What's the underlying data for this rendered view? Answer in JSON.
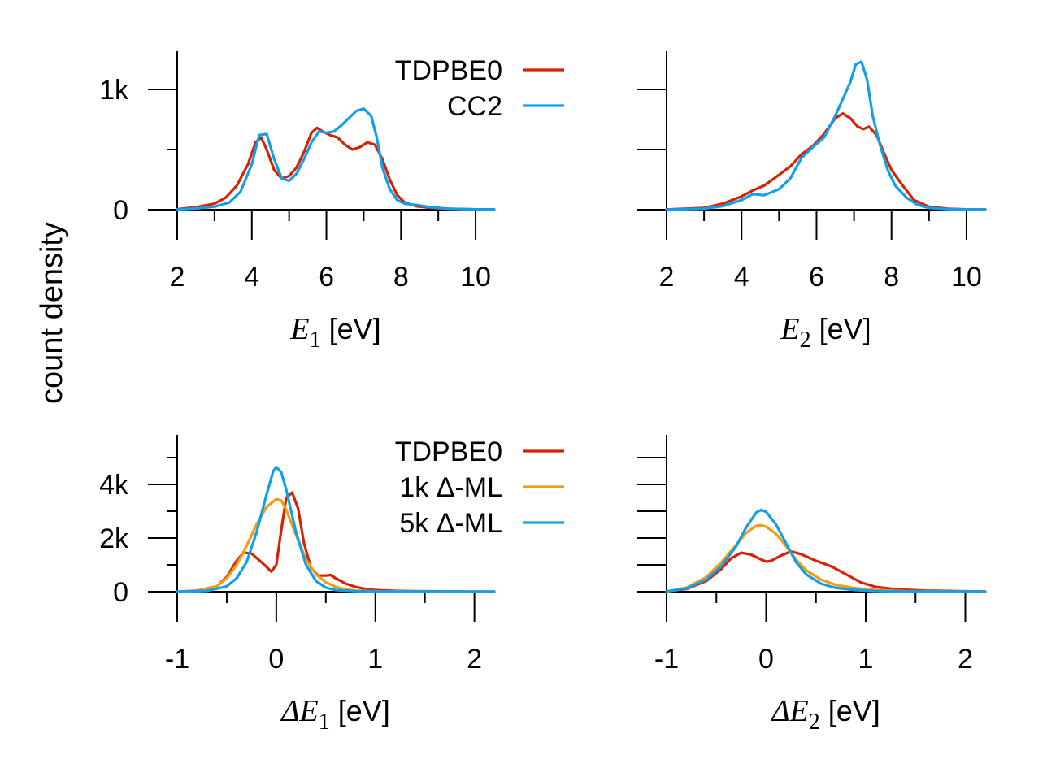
{
  "ylabel": "count density",
  "colors": {
    "tdpbe0": "#d62200",
    "cc2": "#109fea",
    "ml1k": "#f39c12",
    "ml5k": "#109fea"
  },
  "chart_data": [
    {
      "type": "line",
      "panel": "top-left",
      "xlabel_delta": "",
      "xlabel_var": "E",
      "xlabel_sub": "1",
      "xlabel_unit": " [eV]",
      "xlim": [
        2,
        10.5
      ],
      "ylim": [
        0,
        1300
      ],
      "xticks": [
        2,
        4,
        6,
        8,
        10
      ],
      "xtick_labels": [
        "2",
        "4",
        "6",
        "8",
        "10"
      ],
      "xminor": [
        3,
        5,
        7,
        9
      ],
      "yticks": [
        0,
        1000
      ],
      "ytick_labels": [
        "0",
        "1k"
      ],
      "yminor": [
        500
      ],
      "legend": [
        "TDPBE0",
        "CC2"
      ],
      "series": [
        {
          "name": "TDPBE0",
          "color_key": "tdpbe0",
          "x": [
            2,
            2.5,
            3,
            3.3,
            3.6,
            3.9,
            4.1,
            4.25,
            4.4,
            4.6,
            4.8,
            5.0,
            5.2,
            5.4,
            5.6,
            5.75,
            5.9,
            6.1,
            6.3,
            6.5,
            6.7,
            6.9,
            7.1,
            7.3,
            7.5,
            7.7,
            7.9,
            8.1,
            8.4,
            8.8,
            9.3,
            10,
            10.5
          ],
          "y": [
            5,
            20,
            50,
            100,
            200,
            380,
            560,
            600,
            500,
            330,
            260,
            280,
            350,
            480,
            640,
            680,
            650,
            620,
            600,
            540,
            500,
            520,
            560,
            540,
            420,
            250,
            120,
            60,
            30,
            15,
            8,
            3,
            2
          ]
        },
        {
          "name": "CC2",
          "color_key": "cc2",
          "x": [
            2,
            2.5,
            3,
            3.4,
            3.7,
            4.0,
            4.2,
            4.4,
            4.6,
            4.8,
            5.0,
            5.2,
            5.4,
            5.6,
            5.8,
            6.0,
            6.2,
            6.4,
            6.6,
            6.8,
            7.0,
            7.2,
            7.35,
            7.5,
            7.7,
            7.9,
            8.1,
            8.4,
            8.8,
            9.3,
            10,
            10.5
          ],
          "y": [
            3,
            10,
            25,
            60,
            150,
            380,
            620,
            630,
            420,
            260,
            240,
            300,
            420,
            560,
            650,
            640,
            650,
            700,
            760,
            820,
            840,
            780,
            600,
            350,
            170,
            80,
            50,
            40,
            20,
            8,
            3,
            2
          ]
        }
      ]
    },
    {
      "type": "line",
      "panel": "top-right",
      "xlabel_delta": "",
      "xlabel_var": "E",
      "xlabel_sub": "2",
      "xlabel_unit": " [eV]",
      "xlim": [
        2,
        10.5
      ],
      "ylim": [
        0,
        1300
      ],
      "xticks": [
        2,
        4,
        6,
        8,
        10
      ],
      "xtick_labels": [
        "2",
        "4",
        "6",
        "8",
        "10"
      ],
      "xminor": [
        3,
        5,
        7,
        9
      ],
      "yticks": [
        0,
        500,
        1000
      ],
      "ytick_labels": [
        "",
        "",
        ""
      ],
      "yminor": [],
      "legend": [],
      "series": [
        {
          "name": "TDPBE0",
          "color_key": "tdpbe0",
          "x": [
            2,
            3,
            3.5,
            4,
            4.3,
            4.6,
            5.0,
            5.3,
            5.6,
            5.9,
            6.2,
            6.5,
            6.7,
            6.9,
            7.1,
            7.25,
            7.4,
            7.6,
            7.8,
            8.0,
            8.3,
            8.6,
            9.0,
            9.5,
            10,
            10.5
          ],
          "y": [
            2,
            15,
            50,
            110,
            160,
            200,
            290,
            360,
            460,
            530,
            630,
            760,
            800,
            760,
            690,
            670,
            690,
            620,
            470,
            330,
            200,
            80,
            25,
            8,
            3,
            2
          ]
        },
        {
          "name": "CC2",
          "color_key": "cc2",
          "x": [
            2,
            3,
            3.5,
            4,
            4.3,
            4.6,
            5.0,
            5.3,
            5.6,
            5.9,
            6.2,
            6.5,
            6.7,
            6.9,
            7.05,
            7.2,
            7.35,
            7.5,
            7.7,
            7.9,
            8.1,
            8.4,
            8.7,
            9.0,
            9.5,
            10,
            10.5
          ],
          "y": [
            1,
            8,
            30,
            80,
            130,
            120,
            170,
            260,
            430,
            520,
            600,
            780,
            920,
            1060,
            1210,
            1230,
            1080,
            780,
            530,
            330,
            200,
            100,
            40,
            15,
            5,
            2,
            1
          ]
        }
      ]
    },
    {
      "type": "line",
      "panel": "bottom-left",
      "xlabel_delta": "Δ",
      "xlabel_var": "E",
      "xlabel_sub": "1",
      "xlabel_unit": " [eV]",
      "xlim": [
        -1,
        2.2
      ],
      "ylim": [
        0,
        5800
      ],
      "xticks": [
        -1,
        0,
        1,
        2
      ],
      "xtick_labels": [
        "-1",
        "0",
        "1",
        "2"
      ],
      "xminor": [
        -0.5,
        0.5,
        1.5
      ],
      "yticks": [
        0,
        2000,
        4000
      ],
      "ytick_labels": [
        "0",
        "2k",
        "4k"
      ],
      "yminor": [
        1000,
        3000,
        5000
      ],
      "legend": [
        "TDPBE0",
        "1k Δ-ML",
        "5k Δ-ML"
      ],
      "series": [
        {
          "name": "TDPBE0",
          "color_key": "tdpbe0",
          "x": [
            -1,
            -0.8,
            -0.6,
            -0.5,
            -0.4,
            -0.33,
            -0.25,
            -0.15,
            -0.05,
            0.0,
            0.05,
            0.1,
            0.16,
            0.22,
            0.28,
            0.35,
            0.42,
            0.5,
            0.55,
            0.6,
            0.7,
            0.8,
            0.9,
            1.0,
            1.2,
            1.5,
            2.0,
            2.2
          ],
          "y": [
            5,
            40,
            200,
            550,
            1150,
            1460,
            1420,
            1100,
            750,
            1000,
            2300,
            3500,
            3700,
            3100,
            1800,
            900,
            600,
            600,
            620,
            500,
            300,
            180,
            100,
            60,
            30,
            15,
            5,
            3
          ]
        },
        {
          "name": "1k Δ-ML",
          "color_key": "ml1k",
          "x": [
            -1,
            -0.8,
            -0.6,
            -0.5,
            -0.4,
            -0.3,
            -0.2,
            -0.1,
            0.0,
            0.05,
            0.1,
            0.2,
            0.3,
            0.4,
            0.5,
            0.6,
            0.7,
            0.8,
            1.0,
            1.5,
            2.0,
            2.2
          ],
          "y": [
            2,
            30,
            200,
            500,
            1000,
            1700,
            2500,
            3150,
            3450,
            3400,
            3050,
            2100,
            1200,
            650,
            350,
            180,
            90,
            40,
            15,
            5,
            2,
            1
          ]
        },
        {
          "name": "5k Δ-ML",
          "color_key": "ml5k",
          "x": [
            -1,
            -0.7,
            -0.5,
            -0.4,
            -0.3,
            -0.2,
            -0.1,
            -0.03,
            0.0,
            0.05,
            0.1,
            0.2,
            0.3,
            0.4,
            0.5,
            0.6,
            0.8,
            1.0,
            1.5,
            2.0,
            2.2
          ],
          "y": [
            1,
            30,
            200,
            500,
            1100,
            2200,
            3600,
            4500,
            4650,
            4450,
            3800,
            2200,
            1000,
            400,
            150,
            60,
            20,
            8,
            3,
            1,
            1
          ]
        }
      ]
    },
    {
      "type": "line",
      "panel": "bottom-right",
      "xlabel_delta": "Δ",
      "xlabel_var": "E",
      "xlabel_sub": "2",
      "xlabel_unit": " [eV]",
      "xlim": [
        -1,
        2.2
      ],
      "ylim": [
        0,
        5800
      ],
      "xticks": [
        -1,
        0,
        1,
        2
      ],
      "xtick_labels": [
        "-1",
        "0",
        "1",
        "2"
      ],
      "xminor": [
        -0.5,
        0.5,
        1.5
      ],
      "yticks": [
        0,
        1000,
        2000,
        3000,
        4000,
        5000
      ],
      "ytick_labels": [
        "",
        "",
        "",
        "",
        "",
        ""
      ],
      "yminor": [],
      "legend": [],
      "series": [
        {
          "name": "TDPBE0",
          "color_key": "tdpbe0",
          "x": [
            -1,
            -0.8,
            -0.6,
            -0.45,
            -0.35,
            -0.25,
            -0.15,
            -0.05,
            0.0,
            0.05,
            0.15,
            0.25,
            0.35,
            0.5,
            0.65,
            0.8,
            0.95,
            1.1,
            1.3,
            1.6,
            2.0,
            2.2
          ],
          "y": [
            10,
            100,
            400,
            850,
            1250,
            1450,
            1380,
            1200,
            1120,
            1150,
            1350,
            1500,
            1400,
            1150,
            950,
            650,
            350,
            180,
            90,
            40,
            15,
            10
          ]
        },
        {
          "name": "1k Δ-ML",
          "color_key": "ml1k",
          "x": [
            -1,
            -0.8,
            -0.6,
            -0.45,
            -0.3,
            -0.2,
            -0.1,
            -0.05,
            0.0,
            0.1,
            0.2,
            0.3,
            0.4,
            0.55,
            0.7,
            0.9,
            1.1,
            1.4,
            1.8,
            2.2
          ],
          "y": [
            10,
            150,
            550,
            1100,
            1750,
            2200,
            2450,
            2480,
            2420,
            2150,
            1700,
            1200,
            800,
            450,
            250,
            130,
            60,
            20,
            8,
            3
          ]
        },
        {
          "name": "5k Δ-ML",
          "color_key": "ml5k",
          "x": [
            -1,
            -0.8,
            -0.6,
            -0.45,
            -0.3,
            -0.2,
            -0.1,
            -0.05,
            0.0,
            0.1,
            0.2,
            0.3,
            0.4,
            0.55,
            0.7,
            0.9,
            1.1,
            1.4,
            1.8,
            2.2
          ],
          "y": [
            8,
            120,
            450,
            950,
            1700,
            2400,
            2950,
            3050,
            2980,
            2500,
            1800,
            1100,
            650,
            300,
            140,
            60,
            25,
            8,
            3,
            1
          ]
        }
      ]
    }
  ]
}
